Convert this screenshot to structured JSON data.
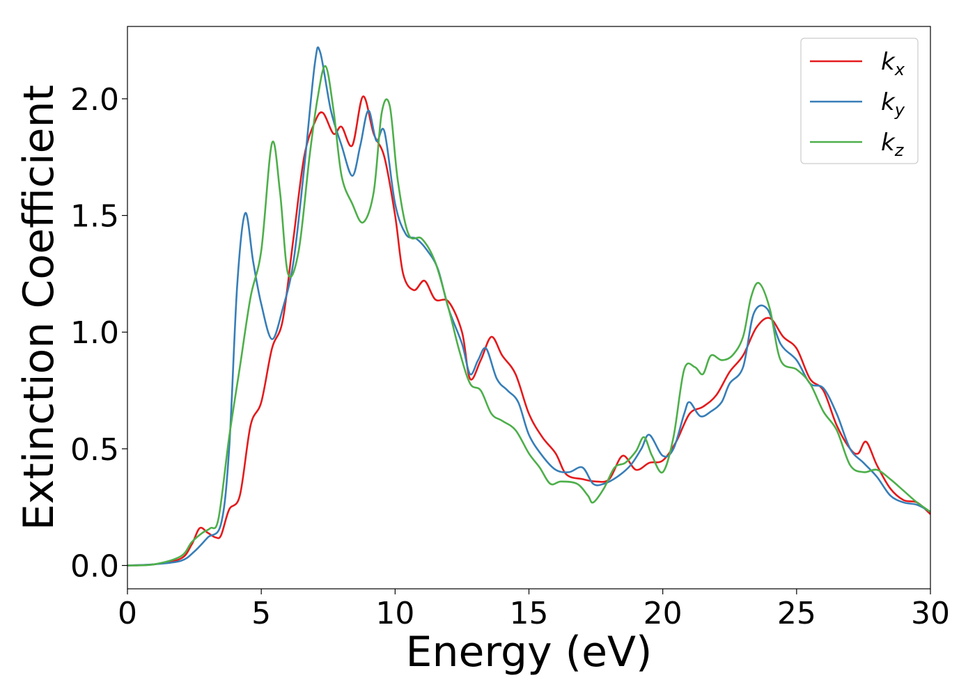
{
  "chart_data": {
    "type": "line",
    "xlabel": "Energy (eV)",
    "ylabel": "Extinction Coefficient",
    "xlim": [
      0,
      30
    ],
    "ylim": [
      -0.1,
      2.31
    ],
    "xticks": [
      0,
      5,
      10,
      15,
      20,
      25,
      30
    ],
    "yticks": [
      0.0,
      0.5,
      1.0,
      1.5,
      2.0
    ],
    "xtick_labels": [
      "0",
      "5",
      "10",
      "15",
      "20",
      "25",
      "30"
    ],
    "ytick_labels": [
      "0.0",
      "0.5",
      "1.0",
      "1.5",
      "2.0"
    ],
    "grid": false,
    "legend_position": "top-right",
    "series": [
      {
        "name": "k",
        "subscript": "x",
        "color": "#e41a1c",
        "points": [
          [
            0,
            0
          ],
          [
            1,
            0.005
          ],
          [
            2,
            0.03
          ],
          [
            2.4,
            0.09
          ],
          [
            2.7,
            0.16
          ],
          [
            3.0,
            0.14
          ],
          [
            3.3,
            0.12
          ],
          [
            3.5,
            0.13
          ],
          [
            3.8,
            0.24
          ],
          [
            4.2,
            0.3
          ],
          [
            4.6,
            0.6
          ],
          [
            5.0,
            0.7
          ],
          [
            5.4,
            0.93
          ],
          [
            5.8,
            1.05
          ],
          [
            6.2,
            1.4
          ],
          [
            6.6,
            1.75
          ],
          [
            7.0,
            1.9
          ],
          [
            7.3,
            1.94
          ],
          [
            7.7,
            1.85
          ],
          [
            8.0,
            1.88
          ],
          [
            8.4,
            1.8
          ],
          [
            8.8,
            2.01
          ],
          [
            9.2,
            1.85
          ],
          [
            9.6,
            1.75
          ],
          [
            10.0,
            1.5
          ],
          [
            10.3,
            1.25
          ],
          [
            10.7,
            1.18
          ],
          [
            11.1,
            1.22
          ],
          [
            11.5,
            1.14
          ],
          [
            12.0,
            1.13
          ],
          [
            12.5,
            1.0
          ],
          [
            12.8,
            0.8
          ],
          [
            13.2,
            0.88
          ],
          [
            13.6,
            0.98
          ],
          [
            14.0,
            0.9
          ],
          [
            14.5,
            0.82
          ],
          [
            15.0,
            0.65
          ],
          [
            15.5,
            0.55
          ],
          [
            16.0,
            0.48
          ],
          [
            16.4,
            0.39
          ],
          [
            17.0,
            0.37
          ],
          [
            17.5,
            0.36
          ],
          [
            18.0,
            0.37
          ],
          [
            18.5,
            0.47
          ],
          [
            19.0,
            0.41
          ],
          [
            19.5,
            0.44
          ],
          [
            20.0,
            0.45
          ],
          [
            20.5,
            0.53
          ],
          [
            21.0,
            0.65
          ],
          [
            21.5,
            0.68
          ],
          [
            22.0,
            0.73
          ],
          [
            22.5,
            0.83
          ],
          [
            23.0,
            0.9
          ],
          [
            23.5,
            1.02
          ],
          [
            24.0,
            1.06
          ],
          [
            24.5,
            0.98
          ],
          [
            25.0,
            0.93
          ],
          [
            25.5,
            0.8
          ],
          [
            26.0,
            0.75
          ],
          [
            26.5,
            0.6
          ],
          [
            27.0,
            0.5
          ],
          [
            27.3,
            0.48
          ],
          [
            27.6,
            0.53
          ],
          [
            28.0,
            0.43
          ],
          [
            28.5,
            0.33
          ],
          [
            29.0,
            0.28
          ],
          [
            29.5,
            0.27
          ],
          [
            30.0,
            0.22
          ]
        ]
      },
      {
        "name": "k",
        "subscript": "y",
        "color": "#377eb8",
        "points": [
          [
            0,
            0
          ],
          [
            1,
            0.005
          ],
          [
            2,
            0.02
          ],
          [
            2.5,
            0.06
          ],
          [
            3.0,
            0.12
          ],
          [
            3.5,
            0.18
          ],
          [
            3.8,
            0.5
          ],
          [
            4.1,
            1.2
          ],
          [
            4.4,
            1.51
          ],
          [
            4.7,
            1.3
          ],
          [
            5.0,
            1.12
          ],
          [
            5.4,
            0.97
          ],
          [
            5.8,
            1.1
          ],
          [
            6.2,
            1.3
          ],
          [
            6.6,
            1.7
          ],
          [
            7.0,
            2.15
          ],
          [
            7.2,
            2.2
          ],
          [
            7.6,
            1.95
          ],
          [
            8.0,
            1.8
          ],
          [
            8.4,
            1.67
          ],
          [
            8.7,
            1.8
          ],
          [
            9.0,
            1.95
          ],
          [
            9.3,
            1.82
          ],
          [
            9.6,
            1.86
          ],
          [
            10.0,
            1.55
          ],
          [
            10.4,
            1.42
          ],
          [
            10.8,
            1.4
          ],
          [
            11.2,
            1.35
          ],
          [
            11.6,
            1.27
          ],
          [
            12.0,
            1.1
          ],
          [
            12.5,
            0.95
          ],
          [
            12.8,
            0.82
          ],
          [
            13.1,
            0.88
          ],
          [
            13.4,
            0.93
          ],
          [
            13.8,
            0.8
          ],
          [
            14.2,
            0.75
          ],
          [
            14.6,
            0.7
          ],
          [
            15.0,
            0.56
          ],
          [
            15.5,
            0.47
          ],
          [
            16.0,
            0.41
          ],
          [
            16.5,
            0.4
          ],
          [
            17.0,
            0.42
          ],
          [
            17.4,
            0.35
          ],
          [
            17.8,
            0.35
          ],
          [
            18.3,
            0.38
          ],
          [
            18.8,
            0.43
          ],
          [
            19.2,
            0.5
          ],
          [
            19.5,
            0.56
          ],
          [
            20.0,
            0.47
          ],
          [
            20.4,
            0.5
          ],
          [
            20.8,
            0.65
          ],
          [
            21.0,
            0.7
          ],
          [
            21.4,
            0.64
          ],
          [
            21.8,
            0.66
          ],
          [
            22.2,
            0.7
          ],
          [
            22.5,
            0.78
          ],
          [
            23.0,
            0.85
          ],
          [
            23.4,
            1.08
          ],
          [
            23.9,
            1.1
          ],
          [
            24.4,
            0.95
          ],
          [
            25.0,
            0.88
          ],
          [
            25.5,
            0.78
          ],
          [
            26.0,
            0.76
          ],
          [
            26.5,
            0.65
          ],
          [
            27.0,
            0.5
          ],
          [
            27.5,
            0.44
          ],
          [
            28.0,
            0.38
          ],
          [
            28.5,
            0.3
          ],
          [
            29.0,
            0.27
          ],
          [
            29.5,
            0.26
          ],
          [
            30.0,
            0.23
          ]
        ]
      },
      {
        "name": "k",
        "subscript": "z",
        "color": "#4daf4a",
        "points": [
          [
            0,
            0
          ],
          [
            1,
            0.005
          ],
          [
            2,
            0.04
          ],
          [
            2.4,
            0.1
          ],
          [
            2.8,
            0.14
          ],
          [
            3.1,
            0.16
          ],
          [
            3.4,
            0.2
          ],
          [
            3.8,
            0.55
          ],
          [
            4.2,
            0.85
          ],
          [
            4.6,
            1.15
          ],
          [
            5.0,
            1.35
          ],
          [
            5.4,
            1.81
          ],
          [
            5.7,
            1.6
          ],
          [
            6.0,
            1.25
          ],
          [
            6.4,
            1.35
          ],
          [
            6.8,
            1.75
          ],
          [
            7.1,
            2.0
          ],
          [
            7.4,
            2.14
          ],
          [
            7.7,
            1.95
          ],
          [
            8.0,
            1.67
          ],
          [
            8.4,
            1.55
          ],
          [
            8.8,
            1.47
          ],
          [
            9.2,
            1.6
          ],
          [
            9.5,
            1.94
          ],
          [
            9.8,
            1.97
          ],
          [
            10.1,
            1.65
          ],
          [
            10.5,
            1.42
          ],
          [
            11.0,
            1.4
          ],
          [
            11.5,
            1.3
          ],
          [
            12.0,
            1.1
          ],
          [
            12.4,
            0.92
          ],
          [
            12.8,
            0.78
          ],
          [
            13.2,
            0.75
          ],
          [
            13.6,
            0.65
          ],
          [
            14.0,
            0.62
          ],
          [
            14.5,
            0.58
          ],
          [
            15.0,
            0.48
          ],
          [
            15.4,
            0.42
          ],
          [
            15.8,
            0.35
          ],
          [
            16.2,
            0.36
          ],
          [
            16.8,
            0.35
          ],
          [
            17.2,
            0.3
          ],
          [
            17.4,
            0.27
          ],
          [
            17.8,
            0.33
          ],
          [
            18.2,
            0.42
          ],
          [
            18.6,
            0.44
          ],
          [
            19.0,
            0.49
          ],
          [
            19.3,
            0.55
          ],
          [
            19.6,
            0.47
          ],
          [
            20.0,
            0.4
          ],
          [
            20.4,
            0.55
          ],
          [
            20.8,
            0.84
          ],
          [
            21.2,
            0.85
          ],
          [
            21.5,
            0.82
          ],
          [
            21.8,
            0.9
          ],
          [
            22.2,
            0.88
          ],
          [
            22.6,
            0.9
          ],
          [
            23.0,
            0.98
          ],
          [
            23.3,
            1.15
          ],
          [
            23.6,
            1.21
          ],
          [
            24.0,
            1.1
          ],
          [
            24.4,
            0.88
          ],
          [
            25.0,
            0.84
          ],
          [
            25.5,
            0.78
          ],
          [
            26.0,
            0.66
          ],
          [
            26.5,
            0.58
          ],
          [
            27.0,
            0.43
          ],
          [
            27.5,
            0.4
          ],
          [
            28.0,
            0.41
          ],
          [
            28.5,
            0.37
          ],
          [
            29.0,
            0.32
          ],
          [
            29.5,
            0.27
          ],
          [
            30.0,
            0.23
          ]
        ]
      }
    ]
  }
}
